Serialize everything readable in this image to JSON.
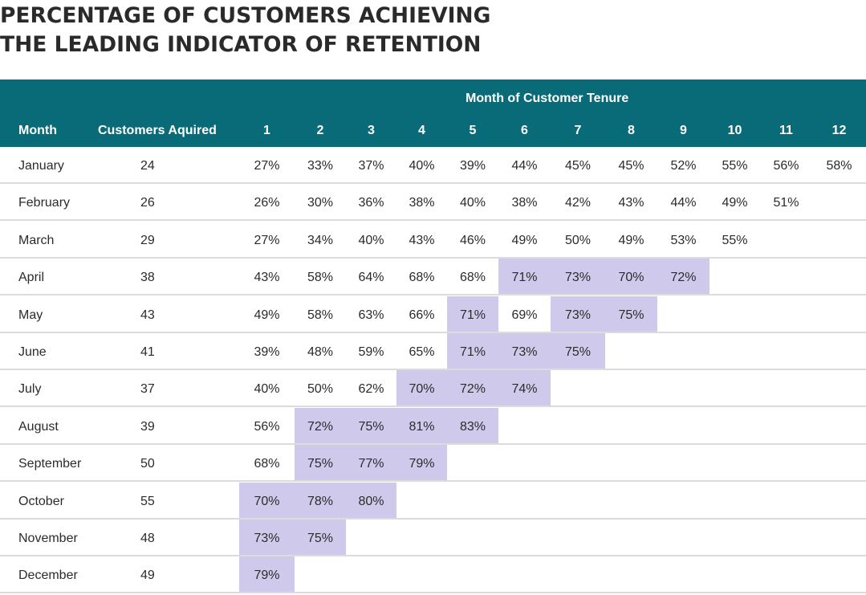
{
  "title_line1": "PERCENTAGE OF CUSTOMERS ACHIEVING",
  "title_line2": "THE LEADING INDICATOR OF RETENTION",
  "header": {
    "tenure_label": "Month of Customer Tenure",
    "month_col": "Month",
    "customers_col": "Customers Aquired",
    "tenure_months": [
      "1",
      "2",
      "3",
      "4",
      "5",
      "6",
      "7",
      "8",
      "9",
      "10",
      "11",
      "12"
    ]
  },
  "colors": {
    "header_bg": "#0a6b78",
    "highlight": "#cfcaec",
    "row_border": "#dcdcdc"
  },
  "highlight_note_threshold_percent": 70,
  "chart_data": {
    "type": "table",
    "title": "PERCENTAGE OF CUSTOMERS ACHIEVING THE LEADING INDICATOR OF RETENTION",
    "columns": [
      "Month",
      "Customers Aquired",
      "1",
      "2",
      "3",
      "4",
      "5",
      "6",
      "7",
      "8",
      "9",
      "10",
      "11",
      "12"
    ],
    "rows": [
      {
        "month": "January",
        "customers": "24",
        "values": [
          "27%",
          "33%",
          "37%",
          "40%",
          "39%",
          "44%",
          "45%",
          "45%",
          "52%",
          "55%",
          "56%",
          "58%"
        ]
      },
      {
        "month": "February",
        "customers": "26",
        "values": [
          "26%",
          "30%",
          "36%",
          "38%",
          "40%",
          "38%",
          "42%",
          "43%",
          "44%",
          "49%",
          "51%",
          ""
        ]
      },
      {
        "month": "March",
        "customers": "29",
        "values": [
          "27%",
          "34%",
          "40%",
          "43%",
          "46%",
          "49%",
          "50%",
          "49%",
          "53%",
          "55%",
          "",
          ""
        ]
      },
      {
        "month": "April",
        "customers": "38",
        "values": [
          "43%",
          "58%",
          "64%",
          "68%",
          "68%",
          "71%",
          "73%",
          "70%",
          "72%",
          "",
          "",
          ""
        ]
      },
      {
        "month": "May",
        "customers": "43",
        "values": [
          "49%",
          "58%",
          "63%",
          "66%",
          "71%",
          "69%",
          "73%",
          "75%",
          "",
          "",
          "",
          ""
        ]
      },
      {
        "month": "June",
        "customers": "41",
        "values": [
          "39%",
          "48%",
          "59%",
          "65%",
          "71%",
          "73%",
          "75%",
          "",
          "",
          "",
          "",
          ""
        ]
      },
      {
        "month": "July",
        "customers": "37",
        "values": [
          "40%",
          "50%",
          "62%",
          "70%",
          "72%",
          "74%",
          "",
          "",
          "",
          "",
          "",
          ""
        ]
      },
      {
        "month": "August",
        "customers": "39",
        "values": [
          "56%",
          "72%",
          "75%",
          "81%",
          "83%",
          "",
          "",
          "",
          "",
          "",
          "",
          ""
        ]
      },
      {
        "month": "September",
        "customers": "50",
        "values": [
          "68%",
          "75%",
          "77%",
          "79%",
          "",
          "",
          "",
          "",
          "",
          "",
          "",
          ""
        ]
      },
      {
        "month": "October",
        "customers": "55",
        "values": [
          "70%",
          "78%",
          "80%",
          "",
          "",
          "",
          "",
          "",
          "",
          "",
          "",
          ""
        ]
      },
      {
        "month": "November",
        "customers": "48",
        "values": [
          "73%",
          "75%",
          "",
          "",
          "",
          "",
          "",
          "",
          "",
          "",
          "",
          ""
        ]
      },
      {
        "month": "December",
        "customers": "49",
        "values": [
          "79%",
          "",
          "",
          "",
          "",
          "",
          "",
          "",
          "",
          "",
          "",
          ""
        ]
      }
    ]
  }
}
